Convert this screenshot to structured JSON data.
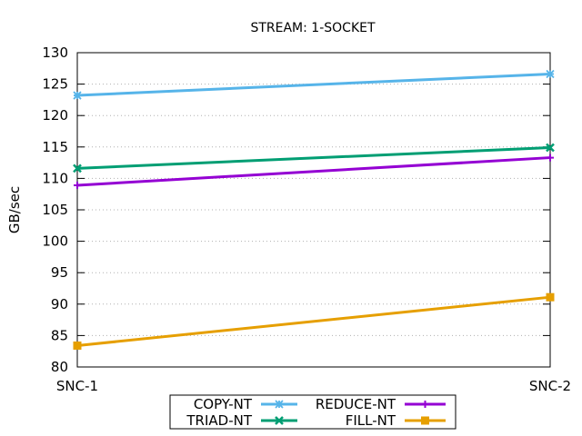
{
  "chart_data": {
    "type": "line",
    "title": "STREAM: 1-SOCKET",
    "xlabel": "",
    "ylabel": "GB/sec",
    "categories": [
      "SNC-1",
      "SNC-2"
    ],
    "ylim": [
      80,
      130
    ],
    "yticks": [
      80,
      85,
      90,
      95,
      100,
      105,
      110,
      115,
      120,
      125,
      130
    ],
    "grid": true,
    "legend_position": "bottom-center",
    "series": [
      {
        "name": "COPY-NT",
        "values": [
          123.2,
          126.6
        ],
        "color": "#56b4e9",
        "marker": "star"
      },
      {
        "name": "REDUCE-NT",
        "values": [
          108.9,
          113.3
        ],
        "color": "#9400d3",
        "marker": "plus"
      },
      {
        "name": "TRIAD-NT",
        "values": [
          111.6,
          114.9
        ],
        "color": "#009e73",
        "marker": "cross"
      },
      {
        "name": "FILL-NT",
        "values": [
          83.4,
          91.1
        ],
        "color": "#e69f00",
        "marker": "square"
      }
    ],
    "legend_order": [
      "COPY-NT",
      "REDUCE-NT",
      "TRIAD-NT",
      "FILL-NT"
    ]
  }
}
